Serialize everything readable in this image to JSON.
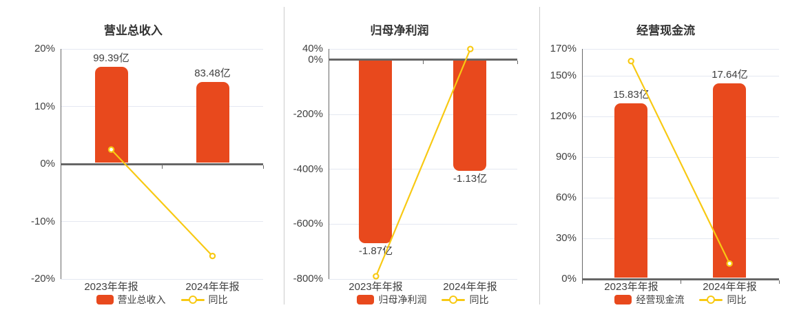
{
  "colors": {
    "bar": "#E8491D",
    "line": "#F8C913",
    "marker_fill": "#FFFFFF",
    "grid": "#E4E8F1",
    "zero_line": "#666666",
    "axis_line": "#666666",
    "separator": "#CCCCCC",
    "text": "#404040",
    "title": "#333333",
    "background": "#FFFFFF"
  },
  "chart_data": [
    {
      "type": "bar",
      "title": "营业总收入",
      "categories": [
        "2023年年报",
        "2024年年报"
      ],
      "series": [
        {
          "name": "营业总收入",
          "type": "bar",
          "unit": "亿",
          "values": [
            99.39,
            83.48
          ],
          "data_labels": [
            "99.39亿",
            "83.48亿"
          ]
        },
        {
          "name": "同比",
          "type": "line",
          "unit": "%",
          "values": [
            2.5,
            -16.0
          ]
        }
      ],
      "y_axis": {
        "min": -20,
        "max": 20,
        "ticks": [
          20,
          10,
          0,
          -10,
          -20
        ],
        "tick_labels": [
          "20%",
          "10%",
          "0%",
          "-10%",
          "-20%"
        ]
      },
      "bar_peak_axis_value": 16.9,
      "legend": [
        "营业总收入",
        "同比"
      ],
      "grid_on": true,
      "legend_position": "bottom"
    },
    {
      "type": "bar",
      "title": "归母净利润",
      "categories": [
        "2023年年报",
        "2024年年报"
      ],
      "series": [
        {
          "name": "归母净利润",
          "type": "bar",
          "unit": "亿",
          "values": [
            -1.87,
            -1.13
          ],
          "data_labels": [
            "-1.87亿",
            "-1.13亿"
          ]
        },
        {
          "name": "同比",
          "type": "line",
          "unit": "%",
          "values": [
            -790.0,
            39.57
          ]
        }
      ],
      "y_axis": {
        "min": -800,
        "max": 40,
        "ticks": [
          40,
          0,
          -200,
          -400,
          -600,
          -800
        ],
        "tick_labels": [
          "40%",
          "0%",
          "-200%",
          "-400%",
          "-600%",
          "-800%"
        ]
      },
      "bar_peak_axis_value": 669,
      "legend": [
        "归母净利润",
        "同比"
      ],
      "grid_on": true,
      "legend_position": "bottom"
    },
    {
      "type": "bar",
      "title": "经营现金流",
      "categories": [
        "2023年年报",
        "2024年年报"
      ],
      "series": [
        {
          "name": "经营现金流",
          "type": "bar",
          "unit": "亿",
          "values": [
            15.83,
            17.64
          ],
          "data_labels": [
            "15.83亿",
            "17.64亿"
          ]
        },
        {
          "name": "同比",
          "type": "line",
          "unit": "%",
          "values": [
            161.0,
            11.44
          ]
        }
      ],
      "y_axis": {
        "min": 0,
        "max": 170,
        "ticks": [
          170,
          150,
          120,
          90,
          60,
          30,
          0
        ],
        "tick_labels": [
          "170%",
          "150%",
          "120%",
          "90%",
          "60%",
          "30%",
          "0%"
        ]
      },
      "bar_peak_axis_value": 144.6,
      "legend": [
        "经营现金流",
        "同比"
      ],
      "grid_on": true,
      "legend_position": "bottom"
    }
  ]
}
